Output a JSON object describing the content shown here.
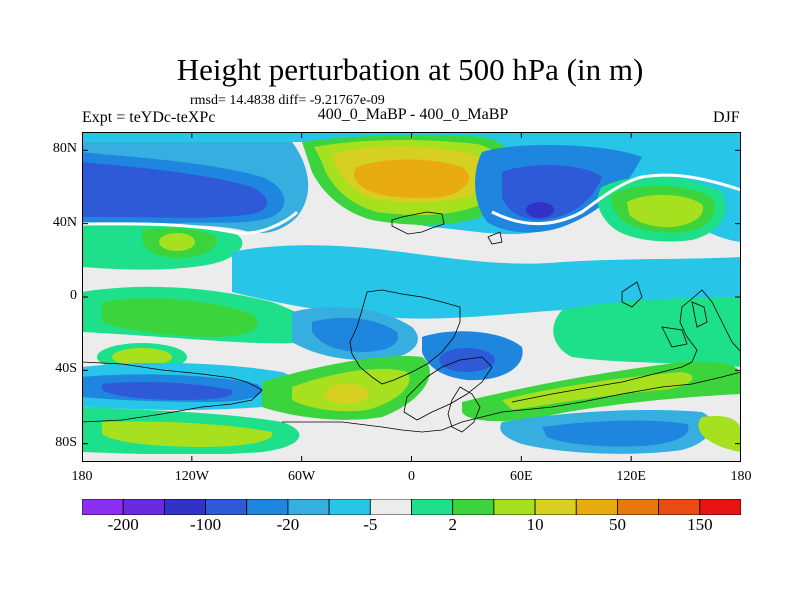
{
  "map": {
    "title": "Height perturbation at 500 hPa (in m)",
    "stats": "rmsd= 14.4838 diff= -9.21767e-09",
    "left_label": "Expt = teYDc-teXPc",
    "center_label": "400_0_MaBP - 400_0_MaBP",
    "right_label": "DJF",
    "lat_ticks": [
      "80N",
      "40N",
      "0",
      "40S",
      "80S"
    ],
    "lon_ticks": [
      "180",
      "120W",
      "60W",
      "0",
      "60E",
      "120E",
      "180"
    ],
    "lat_values": [
      80,
      40,
      0,
      -40,
      -80
    ],
    "lon_values": [
      -180,
      -120,
      -60,
      0,
      60,
      120,
      180
    ],
    "lat_range": [
      -90,
      90
    ],
    "lon_range": [
      -180,
      180
    ]
  },
  "colorbar": {
    "labels": [
      "-200",
      "-100",
      "-20",
      "-5",
      "2",
      "10",
      "50",
      "150"
    ],
    "colors": [
      "#8b2ff0",
      "#6a2be0",
      "#3232c8",
      "#2e5ad8",
      "#1f86e0",
      "#36aee0",
      "#27c6e8",
      "#ececec",
      "#1fe08a",
      "#3cd43c",
      "#a6e01e",
      "#d8d020",
      "#e8ac10",
      "#e87810",
      "#e84c10",
      "#e81414"
    ]
  }
}
